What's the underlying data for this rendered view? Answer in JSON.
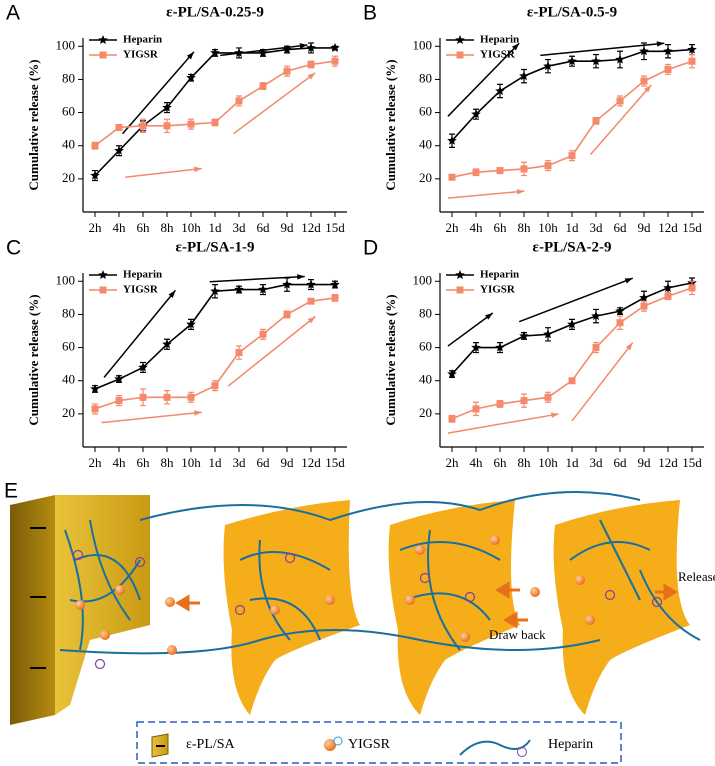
{
  "chart_data": [
    {
      "type": "line",
      "panel": "A",
      "title": "ε-PL/SA-0.25-9",
      "ylabel": "Cumulative release (%)",
      "categories": [
        "2h",
        "4h",
        "6h",
        "8h",
        "10h",
        "1d",
        "3d",
        "6d",
        "9d",
        "12d",
        "15d"
      ],
      "series": [
        {
          "name": "Heparin",
          "color": "#000000",
          "marker": "star",
          "values": [
            22,
            37,
            52,
            63,
            81,
            96,
            96,
            96,
            98,
            99,
            99
          ],
          "errors": [
            3,
            3,
            3,
            3,
            2,
            2,
            3,
            2,
            2,
            3,
            1
          ]
        },
        {
          "name": "YIGSR",
          "color": "#f4896b",
          "marker": "square",
          "values": [
            40,
            51,
            52,
            52,
            53,
            54,
            67,
            76,
            85,
            89,
            91
          ],
          "errors": [
            2,
            1,
            4,
            4,
            3,
            2,
            3,
            2,
            3,
            2,
            3
          ]
        }
      ],
      "ylim": [
        0,
        105
      ],
      "yticks": [
        20,
        40,
        60,
        80,
        100
      ]
    },
    {
      "type": "line",
      "panel": "B",
      "title": "ε-PL/SA-0.5-9",
      "ylabel": "Cumulative release (%)",
      "categories": [
        "2h",
        "4h",
        "6h",
        "8h",
        "10h",
        "1d",
        "3d",
        "6d",
        "9d",
        "12d",
        "15d"
      ],
      "series": [
        {
          "name": "Heparin",
          "color": "#000000",
          "marker": "star",
          "values": [
            43,
            59,
            73,
            82,
            88,
            91,
            91,
            92,
            97,
            97,
            98
          ],
          "errors": [
            4,
            3,
            4,
            4,
            4,
            3,
            4,
            5,
            5,
            4,
            3
          ]
        },
        {
          "name": "YIGSR",
          "color": "#f4896b",
          "marker": "square",
          "values": [
            21,
            24,
            25,
            26,
            28,
            34,
            55,
            67,
            79,
            86,
            91
          ],
          "errors": [
            1,
            2,
            1,
            4,
            3,
            3,
            2,
            3,
            3,
            3,
            4
          ]
        }
      ],
      "ylim": [
        0,
        105
      ],
      "yticks": [
        20,
        40,
        60,
        80,
        100
      ]
    },
    {
      "type": "line",
      "panel": "C",
      "title": "ε-PL/SA-1-9",
      "ylabel": "Cumulative release (%)",
      "categories": [
        "2h",
        "4h",
        "6h",
        "8h",
        "10h",
        "1d",
        "3d",
        "6d",
        "9d",
        "12d",
        "15d"
      ],
      "series": [
        {
          "name": "Heparin",
          "color": "#000000",
          "marker": "star",
          "values": [
            35,
            41,
            48,
            62,
            74,
            94,
            95,
            95,
            98,
            98,
            98
          ],
          "errors": [
            2,
            2,
            3,
            3,
            3,
            4,
            2,
            3,
            4,
            3,
            2
          ]
        },
        {
          "name": "YIGSR",
          "color": "#f4896b",
          "marker": "square",
          "values": [
            23,
            28,
            30,
            30,
            30,
            37,
            57,
            68,
            80,
            88,
            90
          ],
          "errors": [
            3,
            3,
            5,
            4,
            3,
            3,
            4,
            3,
            2,
            1,
            2
          ]
        }
      ],
      "ylim": [
        0,
        105
      ],
      "yticks": [
        20,
        40,
        60,
        80,
        100
      ]
    },
    {
      "type": "line",
      "panel": "D",
      "title": "ε-PL/SA-2-9",
      "ylabel": "Cumulative release (%)",
      "categories": [
        "2h",
        "4h",
        "6h",
        "8h",
        "10h",
        "1d",
        "3d",
        "6d",
        "9d",
        "12d",
        "15d"
      ],
      "series": [
        {
          "name": "Heparin",
          "color": "#000000",
          "marker": "star",
          "values": [
            44,
            60,
            60,
            67,
            68,
            74,
            79,
            82,
            90,
            96,
            99
          ],
          "errors": [
            2,
            3,
            3,
            2,
            4,
            3,
            4,
            2,
            4,
            4,
            3
          ]
        },
        {
          "name": "YIGSR",
          "color": "#f4896b",
          "marker": "square",
          "values": [
            17,
            23,
            26,
            28,
            30,
            40,
            60,
            75,
            85,
            91,
            96
          ],
          "errors": [
            2,
            4,
            2,
            4,
            3,
            1,
            3,
            4,
            3,
            2,
            4
          ]
        }
      ],
      "ylim": [
        0,
        105
      ],
      "yticks": [
        20,
        40,
        60,
        80,
        100
      ]
    }
  ],
  "panel_e": {
    "label": "E",
    "annotations": [
      "Release",
      "Draw back"
    ],
    "legend": [
      "ε-PL/SA",
      "YIGSR",
      "Heparin"
    ]
  }
}
